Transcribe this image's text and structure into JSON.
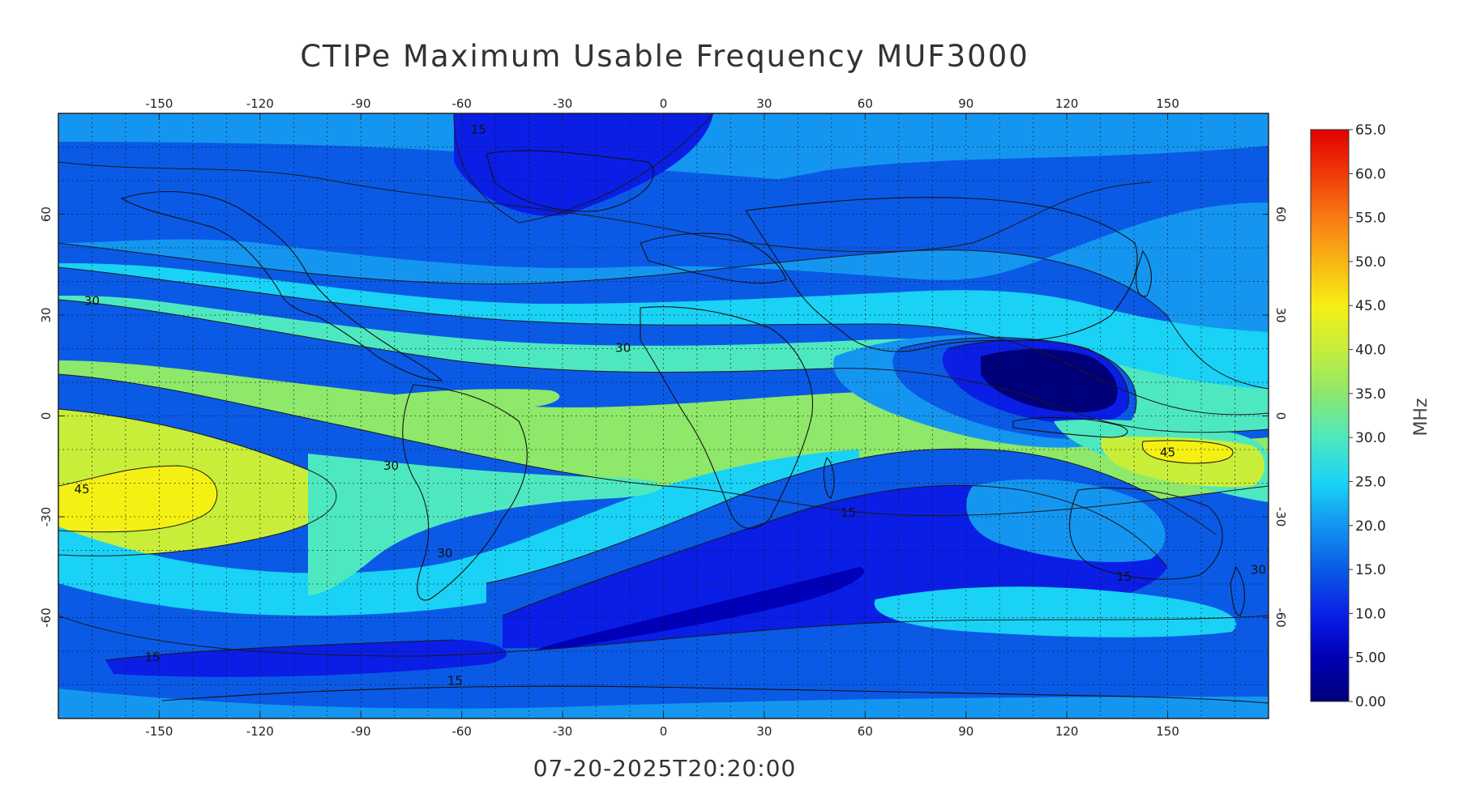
{
  "title": "CTIPe Maximum Usable Frequency MUF3000",
  "timestamp": "07-20-2025T20:20:00",
  "map": {
    "lon_ticks": [
      "-150",
      "-120",
      "-90",
      "-60",
      "-30",
      "0",
      "30",
      "60",
      "90",
      "120",
      "150"
    ],
    "lon_tick_values": [
      -150,
      -120,
      -90,
      -60,
      -30,
      0,
      30,
      60,
      90,
      120,
      150
    ],
    "lat_ticks": [
      "60",
      "30",
      "0",
      "-30",
      "-60"
    ],
    "lat_tick_values": [
      60,
      30,
      0,
      -30,
      -60
    ],
    "lon_range": [
      -180,
      180
    ],
    "lat_range": [
      -90,
      90
    ],
    "grid": "dotted",
    "contour_labels": [
      {
        "text": "15",
        "lon": -55,
        "lat": 84
      },
      {
        "text": "30",
        "lon": -170,
        "lat": 33
      },
      {
        "text": "30",
        "lon": -12,
        "lat": 19
      },
      {
        "text": "30",
        "lon": -81,
        "lat": -16
      },
      {
        "text": "30",
        "lon": -65,
        "lat": -42
      },
      {
        "text": "45",
        "lon": -173,
        "lat": -23
      },
      {
        "text": "45",
        "lon": 150,
        "lat": -12
      },
      {
        "text": "15",
        "lon": 55,
        "lat": -30
      },
      {
        "text": "15",
        "lon": 137,
        "lat": -49
      },
      {
        "text": "15",
        "lon": -152,
        "lat": -73
      },
      {
        "text": "15",
        "lon": -62,
        "lat": -80
      },
      {
        "text": "30",
        "lon": 177,
        "lat": -47
      }
    ],
    "palette": {
      "0": "#00007a",
      "5": "#0000b8",
      "10": "#0a1ee6",
      "15": "#0a5ae6",
      "20": "#1496f0",
      "25": "#19d2f5",
      "30": "#4ee8c0",
      "35": "#8ee86a",
      "40": "#c8ee3a",
      "45": "#f5f014",
      "50": "#f8b414",
      "55": "#f87814",
      "60": "#f03c0a",
      "65": "#e00000"
    }
  },
  "colorbar": {
    "labels": [
      "65.0",
      "60.0",
      "55.0",
      "50.0",
      "45.0",
      "40.0",
      "35.0",
      "30.0",
      "25.0",
      "20.0",
      "15.0",
      "10.0",
      "5.00",
      "0.00"
    ],
    "unit": "MHz",
    "min": 0,
    "max": 65
  }
}
